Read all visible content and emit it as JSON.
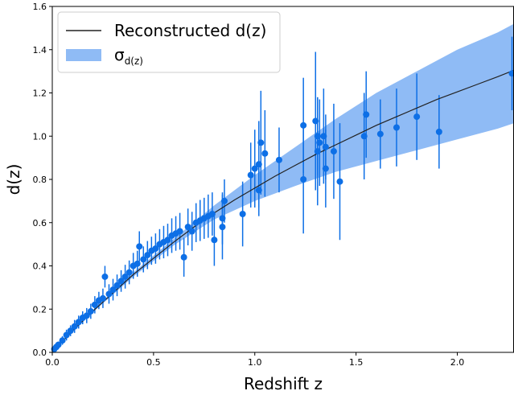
{
  "chart_data": {
    "type": "scatter",
    "xlabel": "Redshift z",
    "ylabel": "d(z)",
    "xlim": [
      0.0,
      2.28
    ],
    "ylim": [
      0.0,
      1.6
    ],
    "xticks": [
      "0.0",
      "0.5",
      "1.0",
      "1.5",
      "2.0"
    ],
    "yticks": [
      "0.0",
      "0.2",
      "0.4",
      "0.6",
      "0.8",
      "1.0",
      "1.2",
      "1.4",
      "1.6"
    ],
    "legend_position": "upper-left",
    "colors": {
      "curve": "#222222",
      "band": "#8fbbf5",
      "points": "#0d6fe6"
    },
    "legend": {
      "curve_label": "Reconstructed d(z)",
      "band_label": "σ",
      "band_sub": "d(z)"
    },
    "series": [
      {
        "name": "Reconstructed d(z)",
        "type": "line",
        "x": [
          0.0,
          0.1,
          0.2,
          0.3,
          0.4,
          0.5,
          0.6,
          0.7,
          0.8,
          0.9,
          1.0,
          1.1,
          1.2,
          1.3,
          1.4,
          1.5,
          1.6,
          1.7,
          1.8,
          1.9,
          2.0,
          2.1,
          2.2,
          2.28
        ],
        "y": [
          0.0,
          0.1,
          0.19,
          0.275,
          0.36,
          0.435,
          0.51,
          0.58,
          0.645,
          0.705,
          0.76,
          0.815,
          0.865,
          0.915,
          0.96,
          1.005,
          1.05,
          1.09,
          1.13,
          1.17,
          1.205,
          1.24,
          1.275,
          1.305
        ]
      },
      {
        "name": "σ",
        "type": "band",
        "x": [
          0.0,
          0.2,
          0.4,
          0.6,
          0.8,
          1.0,
          1.2,
          1.4,
          1.6,
          1.8,
          2.0,
          2.2,
          2.28
        ],
        "lower": [
          0.0,
          0.185,
          0.35,
          0.495,
          0.615,
          0.7,
          0.77,
          0.835,
          0.885,
          0.935,
          0.985,
          1.035,
          1.06
        ],
        "upper": [
          0.0,
          0.195,
          0.37,
          0.525,
          0.68,
          0.82,
          0.95,
          1.08,
          1.2,
          1.3,
          1.4,
          1.48,
          1.52
        ]
      }
    ],
    "points": {
      "x": [
        0.01,
        0.02,
        0.03,
        0.05,
        0.07,
        0.09,
        0.11,
        0.13,
        0.15,
        0.17,
        0.19,
        0.21,
        0.23,
        0.25,
        0.26,
        0.28,
        0.3,
        0.32,
        0.34,
        0.36,
        0.38,
        0.4,
        0.42,
        0.43,
        0.45,
        0.47,
        0.49,
        0.51,
        0.53,
        0.55,
        0.57,
        0.59,
        0.61,
        0.63,
        0.65,
        0.67,
        0.69,
        0.71,
        0.73,
        0.75,
        0.77,
        0.79,
        0.8,
        0.84,
        0.84,
        0.85,
        0.94,
        0.98,
        1.0,
        1.02,
        1.02,
        1.03,
        1.05,
        1.12,
        1.24,
        1.24,
        1.3,
        1.31,
        1.31,
        1.32,
        1.34,
        1.35,
        1.35,
        1.39,
        1.42,
        1.54,
        1.55,
        1.62,
        1.7,
        1.8,
        1.91,
        2.27
      ],
      "y": [
        0.015,
        0.025,
        0.035,
        0.055,
        0.08,
        0.1,
        0.12,
        0.14,
        0.16,
        0.17,
        0.19,
        0.22,
        0.24,
        0.25,
        0.35,
        0.27,
        0.29,
        0.31,
        0.33,
        0.35,
        0.37,
        0.4,
        0.41,
        0.49,
        0.43,
        0.45,
        0.47,
        0.48,
        0.5,
        0.51,
        0.52,
        0.54,
        0.55,
        0.56,
        0.44,
        0.58,
        0.56,
        0.6,
        0.61,
        0.62,
        0.63,
        0.64,
        0.52,
        0.58,
        0.62,
        0.7,
        0.64,
        0.82,
        0.85,
        0.87,
        0.75,
        0.97,
        0.92,
        0.89,
        1.05,
        0.8,
        1.07,
        1.0,
        0.93,
        0.97,
        1.0,
        0.95,
        0.85,
        0.93,
        0.79,
        1.0,
        1.1,
        1.01,
        1.04,
        1.09,
        1.02,
        1.29
      ],
      "err": [
        0.01,
        0.012,
        0.015,
        0.02,
        0.025,
        0.025,
        0.03,
        0.03,
        0.03,
        0.035,
        0.035,
        0.04,
        0.04,
        0.045,
        0.05,
        0.045,
        0.05,
        0.05,
        0.05,
        0.055,
        0.055,
        0.06,
        0.06,
        0.07,
        0.06,
        0.065,
        0.065,
        0.07,
        0.07,
        0.075,
        0.075,
        0.08,
        0.08,
        0.085,
        0.09,
        0.085,
        0.09,
        0.09,
        0.095,
        0.095,
        0.1,
        0.1,
        0.12,
        0.15,
        0.12,
        0.1,
        0.15,
        0.15,
        0.18,
        0.2,
        0.12,
        0.24,
        0.2,
        0.15,
        0.22,
        0.25,
        0.32,
        0.18,
        0.25,
        0.2,
        0.22,
        0.15,
        0.18,
        0.22,
        0.27,
        0.2,
        0.2,
        0.16,
        0.18,
        0.2,
        0.17,
        0.17
      ]
    }
  }
}
